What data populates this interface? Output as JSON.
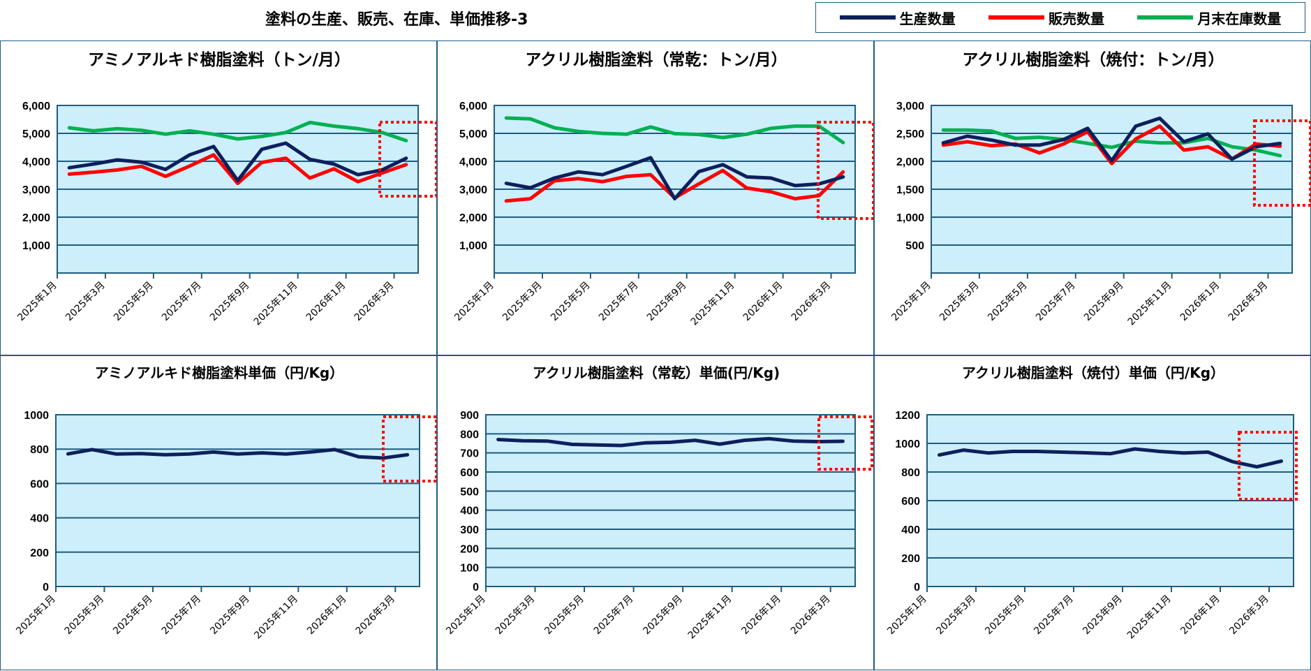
{
  "title": "塗料の生産、販売、在庫、単価推移-3",
  "legend": [
    {
      "name": "生産数量",
      "color": "#0d1f5c"
    },
    {
      "name": "販売数量",
      "color": "#ff0000"
    },
    {
      "name": "月末在庫数量",
      "color": "#00b050"
    }
  ],
  "colors": {
    "plot_bg": "#cdeefb",
    "grid": "#1f5c80",
    "highlight": "#ff0000"
  },
  "chart_data": [
    {
      "type": "line",
      "title": "アミノアルキド樹脂塗料（トン/月）",
      "categories": [
        "2025年1月",
        "2025年2月",
        "2025年3月",
        "2025年4月",
        "2025年5月",
        "2025年6月",
        "2025年7月",
        "2025年8月",
        "2025年9月",
        "2025年10月",
        "2025年11月",
        "2025年12月",
        "2026年1月",
        "2026年2月",
        "2026年3月"
      ],
      "tick_labels": [
        "2025年1月",
        "2025年3月",
        "2025年5月",
        "2025年7月",
        "2025年9月",
        "2025年11月",
        "2026年1月",
        "2026年3月"
      ],
      "ylim": [
        0,
        6000
      ],
      "yticks": [
        1000,
        2000,
        3000,
        4000,
        5000,
        6000
      ],
      "ytick_labels": [
        "1,000",
        "2,000",
        "3,000",
        "4,000",
        "5,000",
        "6,000"
      ],
      "series": [
        {
          "name": "生産数量",
          "values": [
            3770,
            3900,
            4050,
            3970,
            3710,
            4230,
            4530,
            3310,
            4430,
            4650,
            4070,
            3900,
            3520,
            3690,
            4110
          ]
        },
        {
          "name": "販売数量",
          "values": [
            3540,
            3610,
            3690,
            3820,
            3460,
            3830,
            4230,
            3210,
            3960,
            4110,
            3400,
            3730,
            3270,
            3580,
            3880
          ]
        },
        {
          "name": "月末在庫数量",
          "values": [
            5200,
            5090,
            5170,
            5110,
            4970,
            5090,
            4970,
            4800,
            4890,
            5030,
            5390,
            5260,
            5170,
            5030,
            4740
          ]
        }
      ]
    },
    {
      "type": "line",
      "title": "アクリル樹脂塗料（常乾：トン/月）",
      "categories": [
        "2025年1月",
        "2025年2月",
        "2025年3月",
        "2025年4月",
        "2025年5月",
        "2025年6月",
        "2025年7月",
        "2025年8月",
        "2025年9月",
        "2025年10月",
        "2025年11月",
        "2025年12月",
        "2026年1月",
        "2026年2月",
        "2026年3月"
      ],
      "tick_labels": [
        "2025年1月",
        "2025年3月",
        "2025年5月",
        "2025年7月",
        "2025年9月",
        "2025年11月",
        "2026年1月",
        "2026年3月"
      ],
      "ylim": [
        0,
        6000
      ],
      "yticks": [
        1000,
        2000,
        3000,
        4000,
        5000,
        6000
      ],
      "ytick_labels": [
        "1,000",
        "2,000",
        "3,000",
        "4,000",
        "5,000",
        "6,000"
      ],
      "series": [
        {
          "name": "生産数量",
          "values": [
            3210,
            3050,
            3400,
            3620,
            3520,
            3820,
            4130,
            2660,
            3630,
            3880,
            3440,
            3400,
            3130,
            3190,
            3440
          ]
        },
        {
          "name": "販売数量",
          "values": [
            2580,
            2660,
            3300,
            3380,
            3270,
            3460,
            3520,
            2690,
            3190,
            3670,
            3040,
            2910,
            2660,
            2770,
            3620
          ]
        },
        {
          "name": "月末在庫数量",
          "values": [
            5550,
            5520,
            5200,
            5070,
            5000,
            4970,
            5230,
            4990,
            4960,
            4850,
            4970,
            5180,
            5260,
            5260,
            4670
          ]
        }
      ]
    },
    {
      "type": "line",
      "title": "アクリル樹脂塗料（焼付：トン/月）",
      "categories": [
        "2025年1月",
        "2025年2月",
        "2025年3月",
        "2025年4月",
        "2025年5月",
        "2025年6月",
        "2025年7月",
        "2025年8月",
        "2025年9月",
        "2025年10月",
        "2025年11月",
        "2025年12月",
        "2026年1月",
        "2026年2月",
        "2026年3月"
      ],
      "tick_labels": [
        "2025年1月",
        "2025年3月",
        "2025年5月",
        "2025年7月",
        "2025年9月",
        "2025年11月",
        "2026年1月",
        "2026年3月"
      ],
      "ylim": [
        0,
        3000
      ],
      "yticks": [
        500,
        1000,
        1500,
        2000,
        2500,
        3000
      ],
      "ytick_labels": [
        "500",
        "1,000",
        "1,500",
        "2,000",
        "2,500",
        "3,000"
      ],
      "series": [
        {
          "name": "生産数量",
          "values": [
            2330,
            2450,
            2380,
            2290,
            2290,
            2390,
            2590,
            2010,
            2630,
            2770,
            2350,
            2490,
            2040,
            2260,
            2320
          ]
        },
        {
          "name": "販売数量",
          "values": [
            2290,
            2350,
            2280,
            2310,
            2150,
            2310,
            2530,
            1960,
            2400,
            2630,
            2200,
            2260,
            2040,
            2310,
            2270
          ]
        },
        {
          "name": "月末在庫数量",
          "values": [
            2560,
            2560,
            2540,
            2410,
            2430,
            2390,
            2320,
            2250,
            2360,
            2330,
            2330,
            2410,
            2260,
            2200,
            2100
          ]
        }
      ]
    },
    {
      "type": "line",
      "title": "アミノアルキド樹脂塗料単価（円/Kg）",
      "categories": [
        "2025年1月",
        "2025年2月",
        "2025年3月",
        "2025年4月",
        "2025年5月",
        "2025年6月",
        "2025年7月",
        "2025年8月",
        "2025年9月",
        "2025年10月",
        "2025年11月",
        "2025年12月",
        "2026年1月",
        "2026年2月",
        "2026年3月"
      ],
      "tick_labels": [
        "2025年1月",
        "2025年3月",
        "2025年5月",
        "2025年7月",
        "2025年9月",
        "2025年11月",
        "2026年1月",
        "2026年3月"
      ],
      "ylim": [
        0,
        1000
      ],
      "yticks": [
        0,
        200,
        400,
        600,
        800,
        1000
      ],
      "ytick_labels": [
        "0",
        "200",
        "400",
        "600",
        "800",
        "1000"
      ],
      "series": [
        {
          "name": "単価",
          "values": [
            772,
            797,
            771,
            774,
            767,
            771,
            783,
            771,
            778,
            771,
            783,
            797,
            755,
            748,
            767
          ]
        }
      ]
    },
    {
      "type": "line",
      "title": "アクリル樹脂塗料（常乾）単価(円/Kg)",
      "categories": [
        "2025年1月",
        "2025年2月",
        "2025年3月",
        "2025年4月",
        "2025年5月",
        "2025年6月",
        "2025年7月",
        "2025年8月",
        "2025年9月",
        "2025年10月",
        "2025年11月",
        "2025年12月",
        "2026年1月",
        "2026年2月",
        "2026年3月"
      ],
      "tick_labels": [
        "2025年1月",
        "2025年3月",
        "2025年5月",
        "2025年7月",
        "2025年9月",
        "2025年11月",
        "2026年1月",
        "2026年3月"
      ],
      "ylim": [
        0,
        900
      ],
      "yticks": [
        0,
        100,
        200,
        300,
        400,
        500,
        600,
        700,
        800,
        900
      ],
      "ytick_labels": [
        "0",
        "100",
        "200",
        "300",
        "400",
        "500",
        "600",
        "700",
        "800",
        "900"
      ],
      "series": [
        {
          "name": "単価",
          "values": [
            770,
            764,
            762,
            745,
            742,
            739,
            753,
            756,
            766,
            746,
            766,
            775,
            762,
            759,
            761
          ]
        }
      ]
    },
    {
      "type": "line",
      "title": "アクリル樹脂塗料（焼付）単価（円/Kg）",
      "categories": [
        "2025年1月",
        "2025年2月",
        "2025年3月",
        "2025年4月",
        "2025年5月",
        "2025年6月",
        "2025年7月",
        "2025年8月",
        "2025年9月",
        "2025年10月",
        "2025年11月",
        "2025年12月",
        "2026年1月",
        "2026年2月",
        "2026年3月"
      ],
      "tick_labels": [
        "2025年1月",
        "2025年3月",
        "2025年5月",
        "2025年7月",
        "2025年9月",
        "2025年11月",
        "2026年1月",
        "2026年3月"
      ],
      "ylim": [
        0,
        1200
      ],
      "yticks": [
        0,
        200,
        400,
        600,
        800,
        1000,
        1200
      ],
      "ytick_labels": [
        "0",
        "200",
        "400",
        "600",
        "800",
        "1000",
        "1200"
      ],
      "series": [
        {
          "name": "単価",
          "values": [
            919,
            953,
            933,
            944,
            944,
            939,
            934,
            928,
            961,
            944,
            933,
            939,
            872,
            836,
            876
          ]
        }
      ]
    }
  ]
}
